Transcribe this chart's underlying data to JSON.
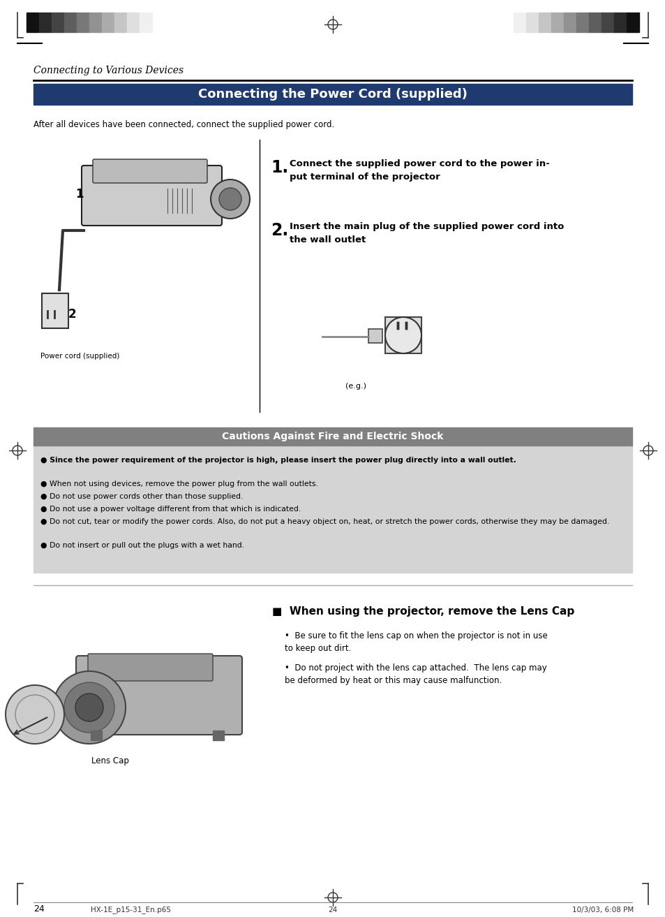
{
  "page_bg": "#ffffff",
  "bar_colors_left": [
    "#111111",
    "#2a2a2a",
    "#444444",
    "#5e5e5e",
    "#787878",
    "#929292",
    "#ababab",
    "#c5c5c5",
    "#dfdfdf",
    "#f0f0f0"
  ],
  "section_italic_title": "Connecting to Various Devices",
  "main_title": "Connecting the Power Cord (supplied)",
  "main_title_bg": "#1e3a6e",
  "main_title_color": "#ffffff",
  "subtitle_text": "After all devices have been connected, connect the supplied power cord.",
  "step1_text": "Connect the supplied power cord to the power in-\nput terminal of the projector",
  "step2_text": "Insert the main plug of the supplied power cord into\nthe wall outlet",
  "eg_label": "(e.g.)",
  "caution_title": "Cautions Against Fire and Electric Shock",
  "caution_title_bg": "#808080",
  "caution_title_color": "#ffffff",
  "caution_bg": "#d4d4d4",
  "caution_bullets": [
    {
      "text": "Since the power requirement of the projector is high, please insert the power plug directly into a wall outlet.",
      "bold": true
    },
    {
      "text": "When not using devices, remove the power plug from the wall outlets.",
      "bold": false
    },
    {
      "text": "Do not use power cords other than those supplied.",
      "bold": false
    },
    {
      "text": "Do not use a power voltage different from that which is indicated.",
      "bold": false
    },
    {
      "text": "Do not cut, tear or modify the power cords. Also, do not put a heavy object on, heat, or stretch the power cords, otherwise they may be damaged.",
      "bold": false
    },
    {
      "text": "Do not insert or pull out the plugs with a wet hand.",
      "bold": false
    }
  ],
  "lens_section_title": "■  When using the projector, remove the Lens Cap",
  "lens_bullet1": "Be sure to fit the lens cap on when the projector is not in use\nto keep out dirt.",
  "lens_bullet2": "Do not project with the lens cap attached.  The lens cap may\nbe deformed by heat or this may cause malfunction.",
  "lens_label": "Lens Cap",
  "power_cord_label": "Power cord (supplied)",
  "page_number": "24",
  "footer_left": "HX-1E_p15-31_En.p65",
  "footer_center": "24",
  "footer_right": "10/3/03, 6:08 PM"
}
